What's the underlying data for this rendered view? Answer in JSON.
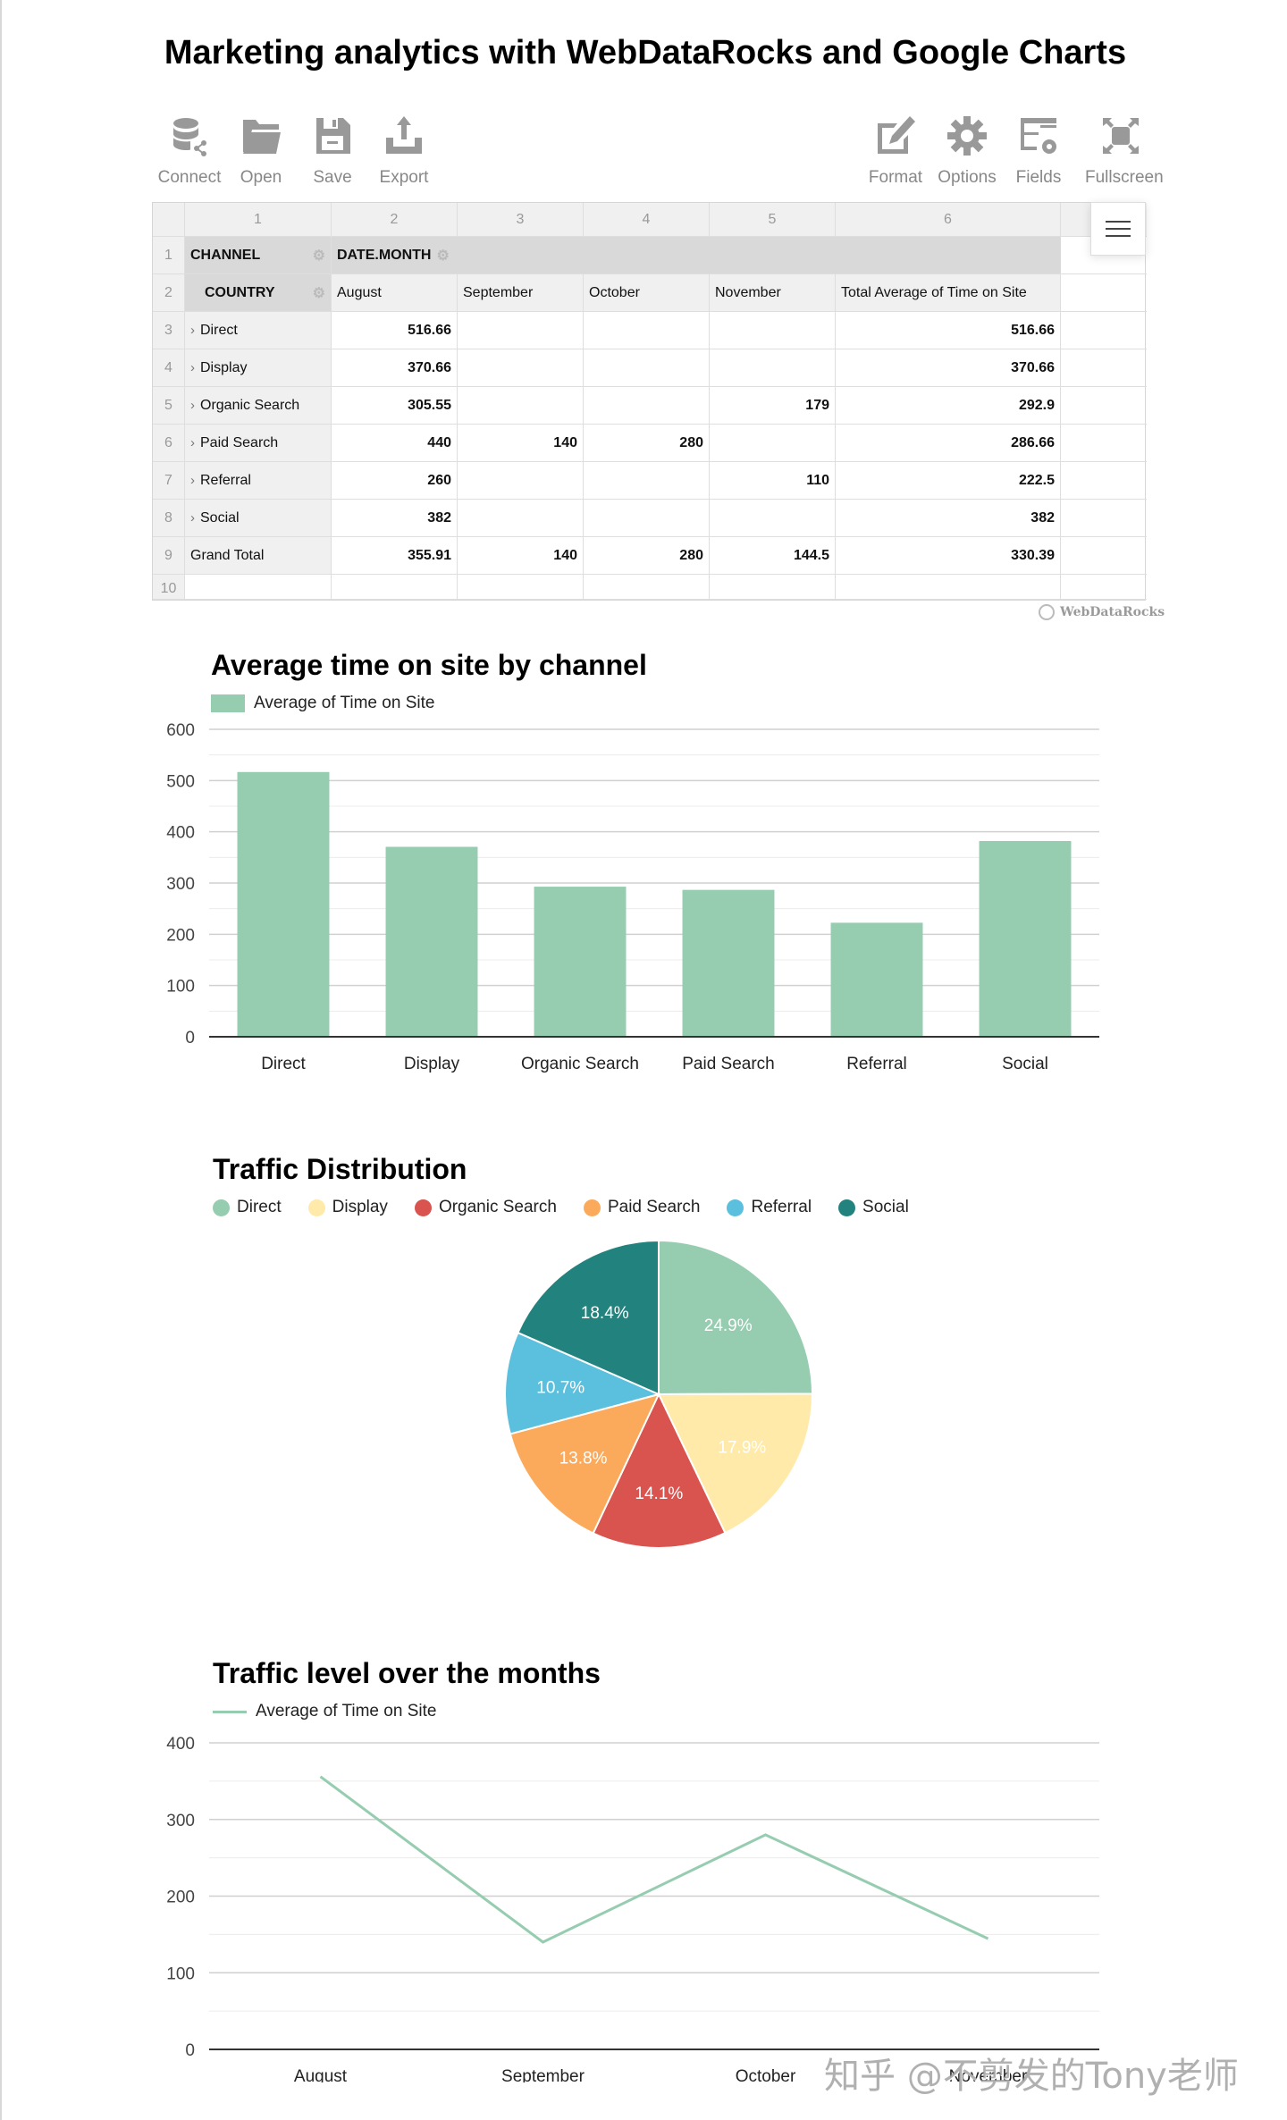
{
  "page": {
    "title": "Marketing analytics with WebDataRocks and Google Charts"
  },
  "toolbar": {
    "left": [
      {
        "label": "Connect",
        "icon": "database-connect-icon"
      },
      {
        "label": "Open",
        "icon": "folder-open-icon"
      },
      {
        "label": "Save",
        "icon": "floppy-disk-icon"
      },
      {
        "label": "Export",
        "icon": "export-tray-icon"
      }
    ],
    "right": [
      {
        "label": "Format",
        "icon": "edit-format-icon"
      },
      {
        "label": "Options",
        "icon": "gear-icon"
      },
      {
        "label": "Fields",
        "icon": "fields-list-icon"
      },
      {
        "label": "Fullscreen",
        "icon": "fullscreen-icon"
      }
    ]
  },
  "pivot": {
    "column_numbers": [
      "1",
      "2",
      "3",
      "4",
      "5",
      "6"
    ],
    "row_numbers": [
      "1",
      "2",
      "3",
      "4",
      "5",
      "6",
      "7",
      "8",
      "9",
      "10"
    ],
    "row_field": "CHANNEL",
    "sub_row_field": "COUNTRY",
    "column_field": "DATE.MONTH",
    "columns": [
      "August",
      "September",
      "October",
      "November",
      "Total Average of Time on Site"
    ],
    "rows": [
      {
        "label": "Direct",
        "values": [
          "516.66",
          "",
          "",
          "",
          "516.66"
        ]
      },
      {
        "label": "Display",
        "values": [
          "370.66",
          "",
          "",
          "",
          "370.66"
        ]
      },
      {
        "label": "Organic Search",
        "values": [
          "305.55",
          "",
          "",
          "179",
          "292.9"
        ]
      },
      {
        "label": "Paid Search",
        "values": [
          "440",
          "140",
          "280",
          "",
          "286.66"
        ]
      },
      {
        "label": "Referral",
        "values": [
          "260",
          "",
          "",
          "110",
          "222.5"
        ]
      },
      {
        "label": "Social",
        "values": [
          "382",
          "",
          "",
          "",
          "382"
        ]
      }
    ],
    "grand_total": {
      "label": "Grand Total",
      "values": [
        "355.91",
        "140",
        "280",
        "144.5",
        "330.39"
      ]
    },
    "branding": "WebDataRocks"
  },
  "colors": {
    "direct": "#96ccb0",
    "display": "#ffeaaa",
    "organic": "#d9534f",
    "paid": "#fbaa5c",
    "referral": "#5bc0de",
    "social": "#22827d"
  },
  "chart_data": [
    {
      "type": "bar",
      "title": "Average time on site by channel",
      "legend": [
        "Average of Time on Site"
      ],
      "legend_position": "top",
      "categories": [
        "Direct",
        "Display",
        "Organic Search",
        "Paid Search",
        "Referral",
        "Social"
      ],
      "values": [
        516.66,
        370.66,
        292.9,
        286.66,
        222.5,
        382
      ],
      "yticks": [
        "0",
        "100",
        "200",
        "300",
        "400",
        "500",
        "600"
      ],
      "ylim": [
        0,
        600
      ],
      "grid": true,
      "xlabel": "",
      "ylabel": ""
    },
    {
      "type": "pie",
      "title": "Traffic Distribution",
      "legend_position": "top",
      "categories": [
        "Direct",
        "Display",
        "Organic Search",
        "Paid Search",
        "Referral",
        "Social"
      ],
      "values": [
        24.9,
        17.9,
        14.1,
        13.8,
        10.7,
        18.4
      ],
      "labels": [
        "24.9%",
        "17.9%",
        "14.1%",
        "13.8%",
        "10.7%",
        "18.4%"
      ]
    },
    {
      "type": "line",
      "title": "Traffic level over the months",
      "legend": [
        "Average of Time on Site"
      ],
      "legend_position": "top",
      "categories": [
        "August",
        "September",
        "October",
        "November"
      ],
      "values": [
        355.91,
        140,
        280,
        144.5
      ],
      "yticks": [
        "0",
        "100",
        "200",
        "300",
        "400"
      ],
      "ylim": [
        0,
        400
      ],
      "grid": true,
      "xlabel": "",
      "ylabel": ""
    }
  ],
  "watermark": "知乎 @不剪发的Tony老师"
}
